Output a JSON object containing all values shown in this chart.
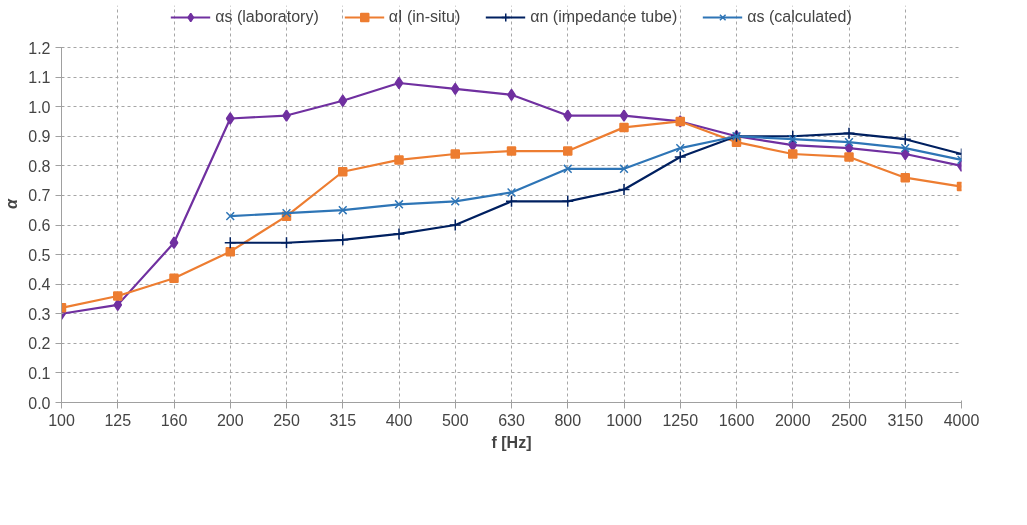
{
  "chart_data": {
    "type": "line",
    "xlabel": "f [Hz]",
    "ylabel": "α",
    "categories": [
      "100",
      "125",
      "160",
      "200",
      "250",
      "315",
      "400",
      "500",
      "630",
      "800",
      "1000",
      "1250",
      "1600",
      "2000",
      "2500",
      "3150",
      "4000"
    ],
    "ylim": [
      0,
      1.2
    ],
    "yticks": [
      {
        "value": 0,
        "label": "0.0"
      },
      0.1,
      0.2,
      0.3,
      0.4,
      0.5,
      0.6,
      0.7,
      0.8,
      0.9,
      {
        "value": 1,
        "label": "1.0"
      },
      1.1,
      1.2
    ],
    "grid": true,
    "legend": "top",
    "line_style": "solid",
    "series": [
      {
        "name": "αs (laboratory)",
        "color": "#7030a0",
        "marker": "diamond",
        "values": [
          0.3,
          0.33,
          0.54,
          0.96,
          0.97,
          1.02,
          1.08,
          1.06,
          1.04,
          0.97,
          0.97,
          0.95,
          0.9,
          0.87,
          0.86,
          0.84,
          0.8
        ]
      },
      {
        "name": "αI (in-situ)",
        "color": "#ed7d31",
        "marker": "square",
        "values": [
          0.32,
          0.36,
          0.42,
          0.51,
          0.63,
          0.78,
          0.82,
          0.84,
          0.85,
          0.85,
          0.93,
          0.95,
          0.88,
          0.84,
          0.83,
          0.76,
          0.73
        ]
      },
      {
        "name": "αn (impedance tube)",
        "color": "#002060",
        "marker": "cross",
        "values": [
          null,
          null,
          null,
          0.54,
          0.54,
          0.55,
          0.57,
          0.6,
          0.68,
          0.68,
          0.72,
          0.83,
          0.9,
          0.9,
          0.91,
          0.89,
          0.84
        ]
      },
      {
        "name": "αs (calculated)",
        "color": "#2e75b6",
        "marker": "x",
        "values": [
          null,
          null,
          null,
          0.63,
          0.64,
          0.65,
          0.67,
          0.68,
          0.71,
          0.79,
          0.79,
          0.86,
          0.9,
          0.89,
          0.88,
          0.86,
          0.82
        ]
      }
    ]
  }
}
